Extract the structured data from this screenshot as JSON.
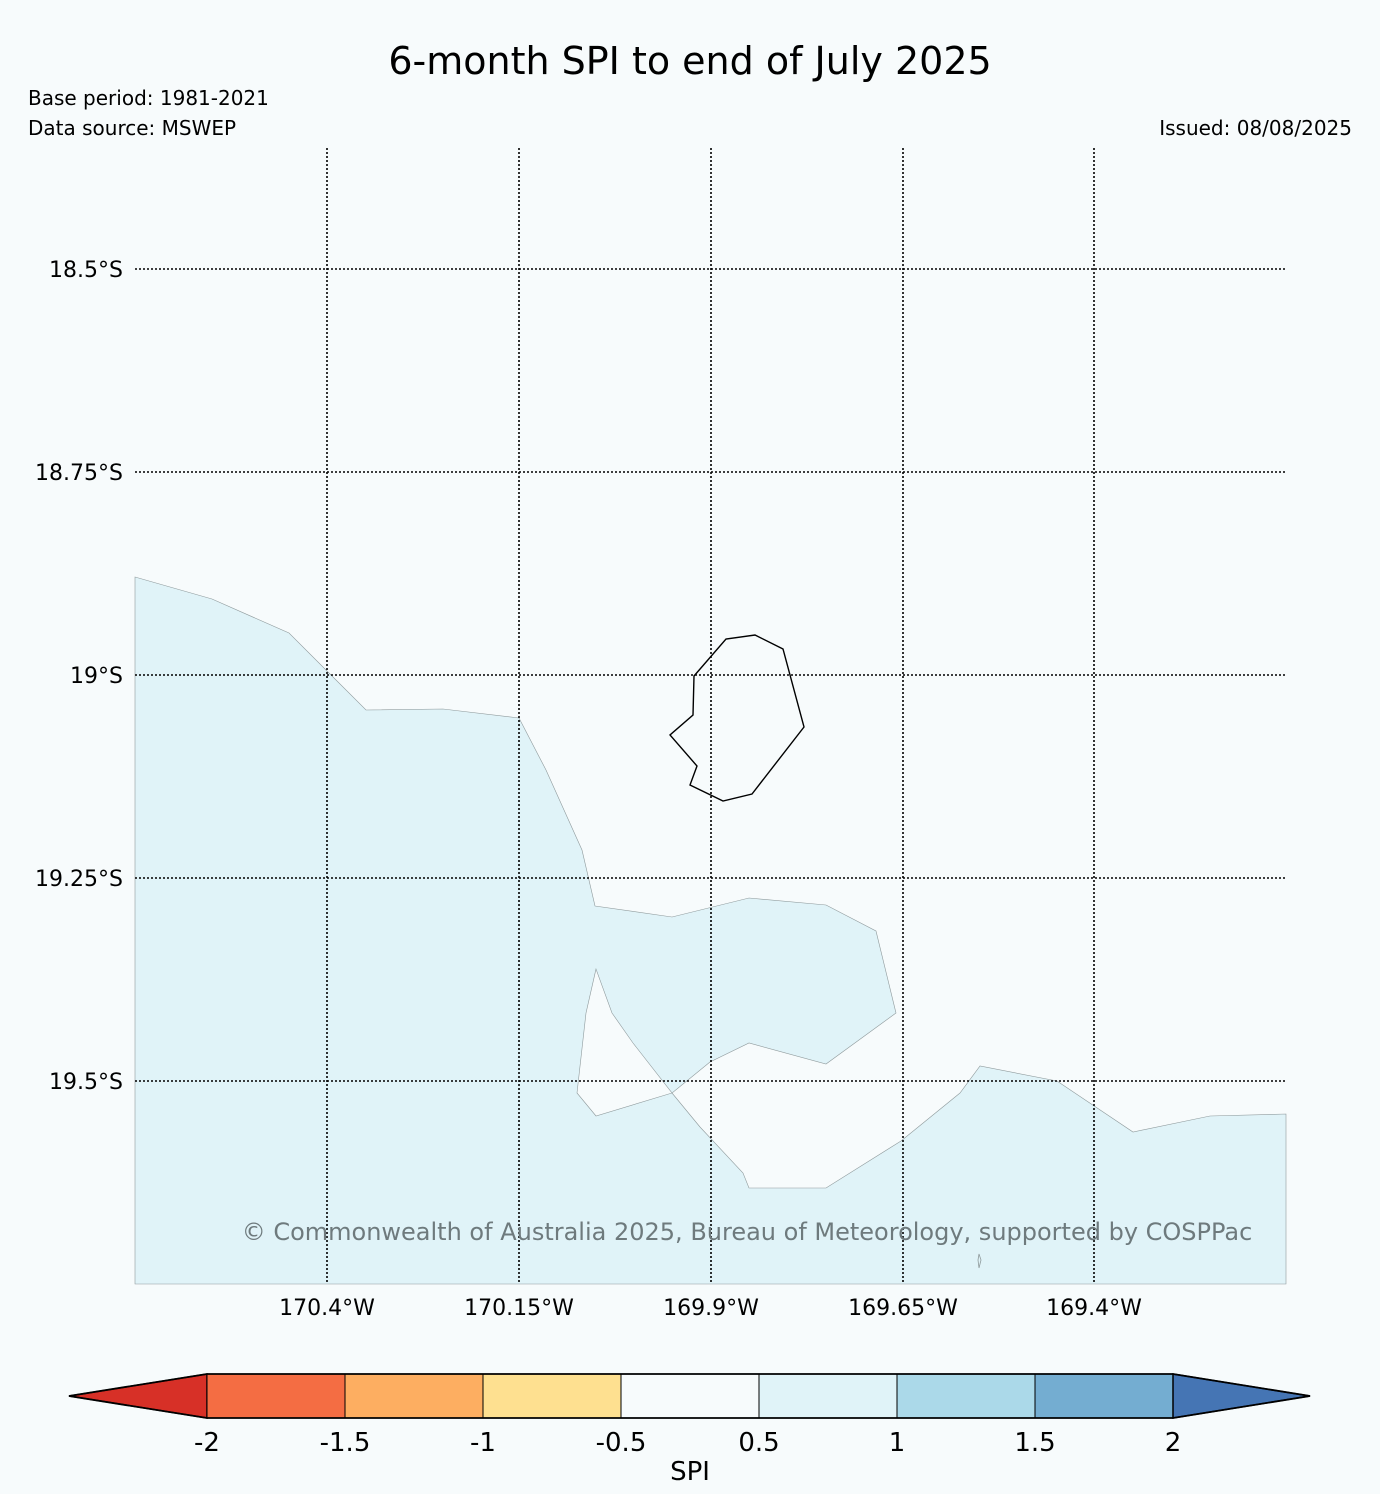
{
  "map": {
    "title": "6-month SPI to end of July 2025",
    "base_period": "Base period: 1981-2021",
    "data_source": "Data source: MSWEP",
    "issued": "Issued: 08/08/2025",
    "copyright": "© Commonwealth of Australia 2025, Bureau of Meteorology, supported by COSPPac",
    "lat_labels": [
      "18.5°S",
      "18.75°S",
      "19°S",
      "19.25°S",
      "19.5°S"
    ],
    "lon_labels": [
      "170.4°W",
      "170.15°W",
      "169.9°W",
      "169.65°W",
      "169.4°W"
    ],
    "region_fill_spi_class": "0.5 to 1",
    "colors": {
      "background": "#f7fbfc",
      "spi_0_5_to_1": "#e0f3f8",
      "coastline": "#000000"
    }
  },
  "colorbar": {
    "label": "SPI",
    "tick_labels": [
      "-2",
      "-1.5",
      "-1",
      "-0.5",
      "0.5",
      "1",
      "1.5",
      "2"
    ],
    "bins": [
      {
        "range": "< -2",
        "color": "#d73027"
      },
      {
        "range": "-2 to -1.5",
        "color": "#f46d43"
      },
      {
        "range": "-1.5 to -1",
        "color": "#fdae61"
      },
      {
        "range": "-1 to -0.5",
        "color": "#fee090"
      },
      {
        "range": "-0.5 to 0.5",
        "color": "#f7fbfc"
      },
      {
        "range": "0.5 to 1",
        "color": "#e0f3f8"
      },
      {
        "range": "1 to 1.5",
        "color": "#abd9e9"
      },
      {
        "range": "1.5 to 2",
        "color": "#74add1"
      },
      {
        "range": "> 2",
        "color": "#4575b4"
      }
    ]
  }
}
